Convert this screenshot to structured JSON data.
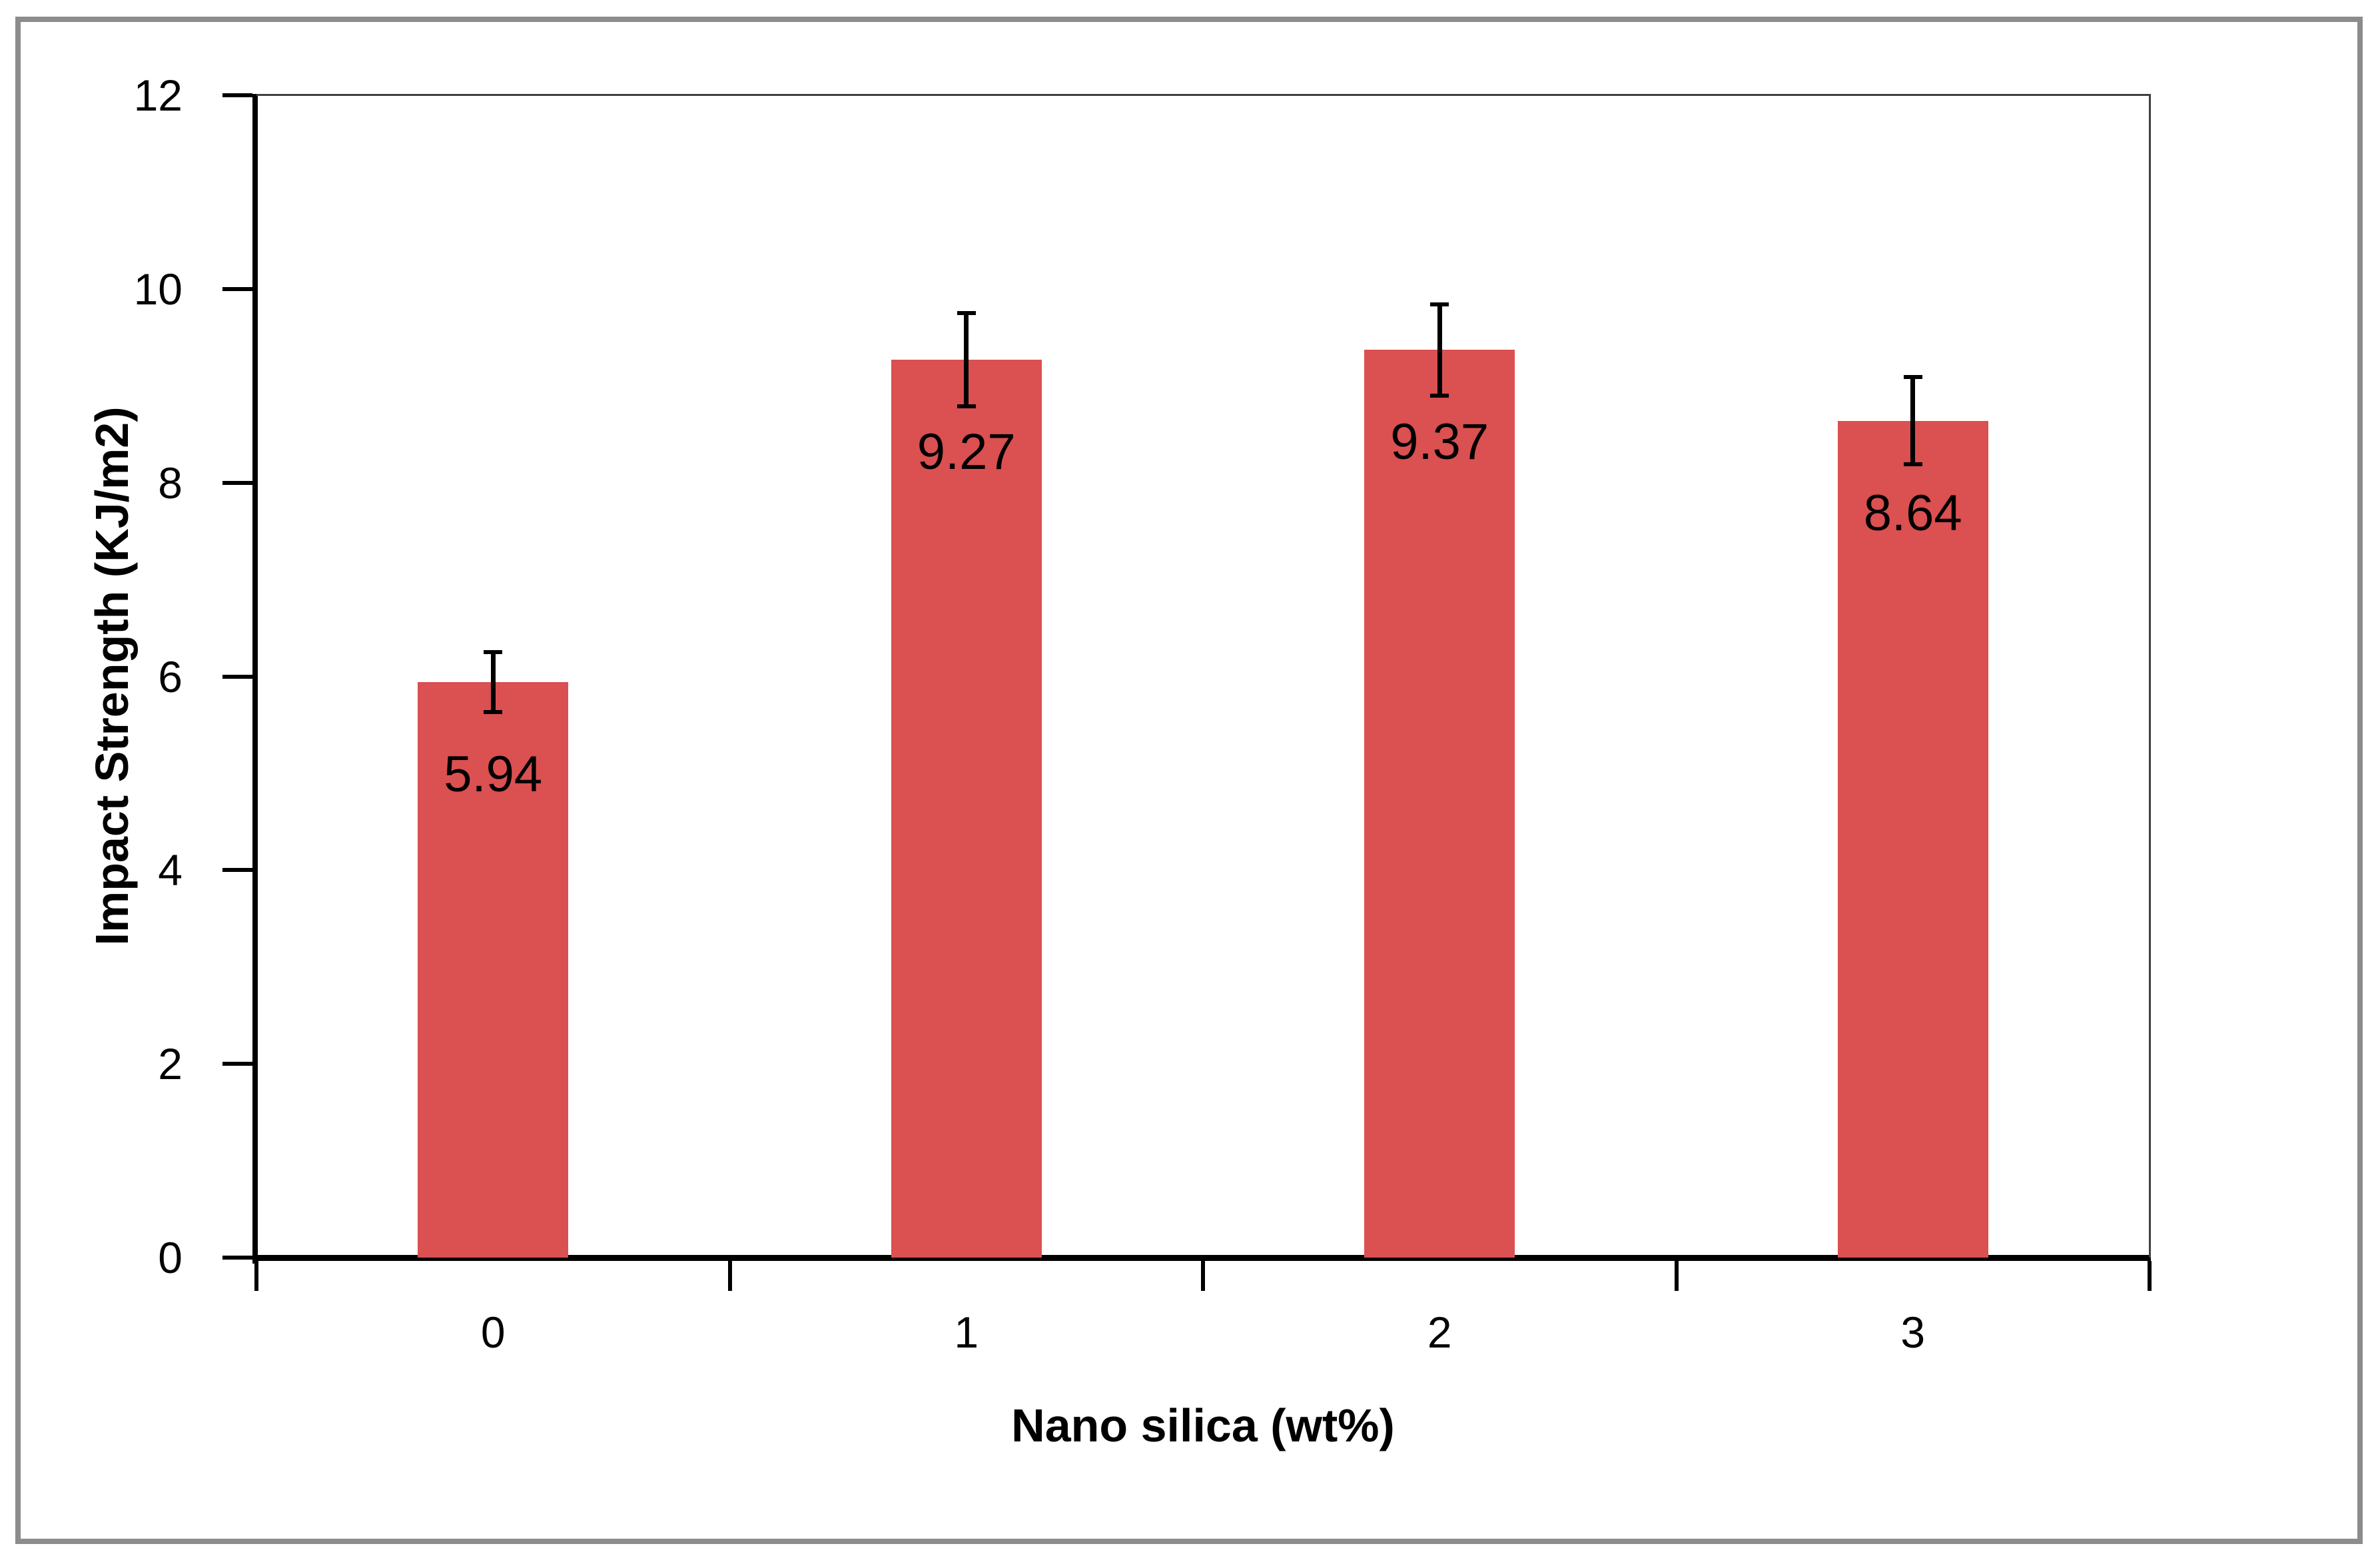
{
  "chart_data": {
    "type": "bar",
    "title": "",
    "xlabel": "Nano silica (wt%)",
    "ylabel": "Impact Strength (KJ/m2)",
    "categories": [
      "0",
      "1",
      "2",
      "3"
    ],
    "values": [
      5.94,
      9.27,
      9.37,
      8.64
    ],
    "value_labels": [
      "5.94",
      "9.27",
      "9.37",
      "8.64"
    ],
    "errors": [
      0.31,
      0.48,
      0.47,
      0.45
    ],
    "y_ticks": [
      "0",
      "2",
      "4",
      "6",
      "8",
      "10",
      "12"
    ],
    "ylim": [
      0,
      12
    ],
    "grid": "off",
    "legend_position": "none",
    "bar_color": "#DB5050",
    "axis_color": "#000000",
    "plot_border_color": "#404040",
    "frame_border_color": "#8C8C8C",
    "background_color": "#FFFFFF"
  }
}
